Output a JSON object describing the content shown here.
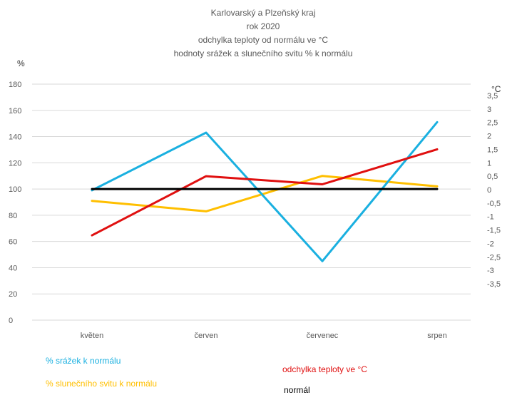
{
  "chart_data": {
    "type": "line",
    "title_lines": [
      "Karlovarský a Plzeňský kraj",
      "rok 2020",
      "odchylka teploty od normálu ve °C",
      "hodnoty srážek a slunečního svitu  % k normálu"
    ],
    "left_axis": {
      "unit": "%",
      "ylim": [
        0,
        180
      ],
      "ticks": [
        "0",
        "20",
        "40",
        "60",
        "80",
        "100",
        "120",
        "140",
        "160",
        "180"
      ]
    },
    "right_axis": {
      "unit": "°C",
      "ylim": [
        -3.5,
        3.5
      ],
      "ticks": [
        "3,5",
        "3",
        "2,5",
        "2",
        "1,5",
        "1",
        "0,5",
        "0",
        "-0,5",
        "-1",
        "-1,5",
        "-2",
        "-2,5",
        "-3",
        "-3,5"
      ],
      "tick_values": [
        3.5,
        3,
        2.5,
        2,
        1.5,
        1,
        0.5,
        0,
        -0.5,
        -1,
        -1.5,
        -2,
        -2.5,
        -3,
        -3.5
      ]
    },
    "categories": [
      "květen",
      "červen",
      "červenec",
      "srpen"
    ],
    "grid": "horizontal",
    "series": [
      {
        "name": "% srážek k normálu",
        "axis": "left",
        "color": "#1ab0e0",
        "values": [
          99,
          143,
          45,
          151
        ]
      },
      {
        "name": "% slunečního svitu k normálu",
        "axis": "left",
        "color": "#ffbf00",
        "values": [
          91,
          83,
          110,
          102
        ]
      },
      {
        "name": "odchylka teploty ve °C",
        "axis": "right",
        "color": "#e01010",
        "values": [
          -1.7,
          0.5,
          0.2,
          1.5
        ]
      },
      {
        "name": "normál",
        "axis": "left",
        "color": "#000000",
        "values": [
          100,
          100,
          100,
          100
        ]
      }
    ],
    "legend_placement": "bottom"
  }
}
